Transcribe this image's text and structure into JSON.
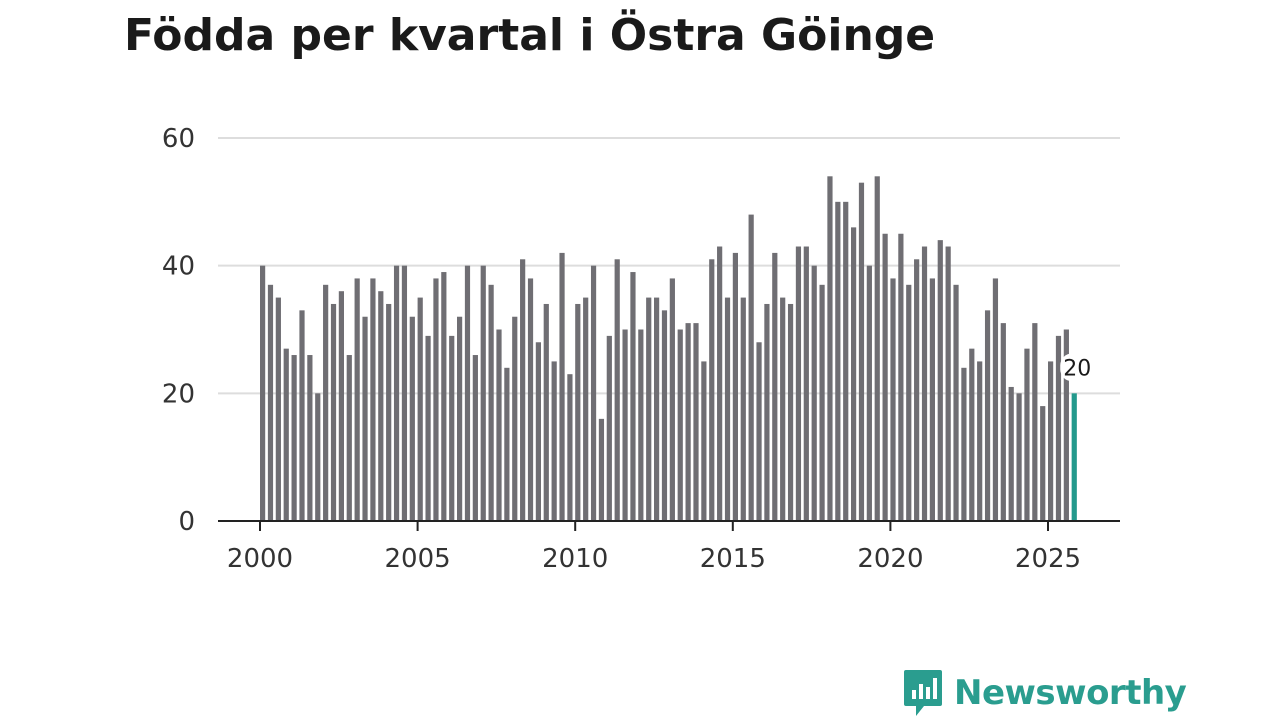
{
  "chart_data": {
    "type": "bar",
    "title": "Födda per kvartal i Östra Göinge",
    "xlabel": "",
    "ylabel": "",
    "ylim": [
      0,
      60
    ],
    "yticks": [
      0,
      20,
      40,
      60
    ],
    "xtick_labels": [
      "2000",
      "2005",
      "2010",
      "2015",
      "2020",
      "2025"
    ],
    "start_year": 2000,
    "grid": true,
    "highlight_last": true,
    "highlight_label": "20",
    "values": [
      40,
      37,
      35,
      27,
      26,
      33,
      26,
      20,
      37,
      34,
      36,
      26,
      38,
      32,
      38,
      36,
      34,
      40,
      40,
      32,
      35,
      29,
      38,
      39,
      29,
      32,
      40,
      26,
      40,
      37,
      30,
      24,
      32,
      41,
      38,
      28,
      34,
      25,
      42,
      23,
      34,
      35,
      40,
      16,
      29,
      41,
      30,
      39,
      30,
      35,
      35,
      33,
      38,
      30,
      31,
      31,
      25,
      41,
      43,
      35,
      42,
      35,
      48,
      28,
      34,
      42,
      35,
      34,
      43,
      43,
      40,
      37,
      54,
      50,
      50,
      46,
      53,
      40,
      54,
      45,
      38,
      45,
      37,
      41,
      43,
      38,
      44,
      43,
      37,
      24,
      27,
      25,
      33,
      38,
      31,
      21,
      20,
      27,
      31,
      18,
      25,
      29,
      30,
      20
    ],
    "colors": {
      "bar": "#6f6e73",
      "highlight": "#23998c",
      "grid": "#dddddd",
      "axis": "#222222"
    }
  },
  "brand": {
    "name": "Newsworthy",
    "icon": "newsworthy-logo-icon",
    "color": "#2a9d8f"
  }
}
